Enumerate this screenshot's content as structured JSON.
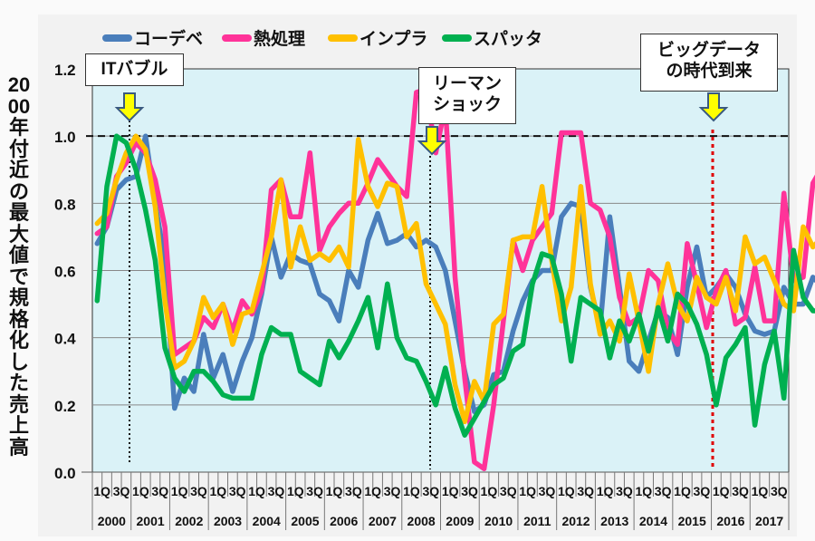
{
  "chart_data": {
    "type": "line",
    "title": "",
    "ylabel": "2000年付近の最大値で規格化した売上高",
    "xlabel": "",
    "ylim": [
      0,
      1.2
    ],
    "yticks": [
      "0.0",
      "0.2",
      "0.4",
      "0.6",
      "0.8",
      "1.0",
      "1.2"
    ],
    "grid": true,
    "legend_position": "top",
    "reference_line": 1.0,
    "years": [
      "2000",
      "2001",
      "2002",
      "2003",
      "2004",
      "2005",
      "2006",
      "2007",
      "2008",
      "2009",
      "2010",
      "2011",
      "2012",
      "2013",
      "2014",
      "2015",
      "2016",
      "2017"
    ],
    "quarter_labels": [
      "1Q",
      "3Q"
    ],
    "series": [
      {
        "name": "コーデベ",
        "color": "#4a7ebb",
        "values": [
          0.68,
          0.73,
          0.84,
          0.87,
          0.88,
          1.0,
          0.8,
          0.63,
          0.19,
          0.28,
          0.24,
          0.41,
          0.28,
          0.35,
          0.24,
          0.33,
          0.4,
          0.53,
          0.7,
          0.58,
          0.65,
          0.63,
          0.62,
          0.53,
          0.51,
          0.45,
          0.6,
          0.55,
          0.69,
          0.77,
          0.68,
          0.69,
          0.71,
          0.67,
          0.69,
          0.67,
          0.6,
          0.45,
          0.3,
          0.18,
          0.2,
          0.29,
          0.3,
          0.42,
          0.51,
          0.57,
          0.6,
          0.6,
          0.76,
          0.8,
          0.79,
          0.55,
          0.43,
          0.76,
          0.55,
          0.33,
          0.3,
          0.39,
          0.48,
          0.46,
          0.35,
          0.55,
          0.67,
          0.52,
          0.55,
          0.59,
          0.55,
          0.47,
          0.42,
          0.41,
          0.42,
          0.55,
          0.5,
          0.5,
          0.58,
          0.55,
          0.6
        ]
      },
      {
        "name": "熱処理",
        "color": "#ff3399",
        "values": [
          0.71,
          0.73,
          0.88,
          0.92,
          0.98,
          0.95,
          0.87,
          0.73,
          0.35,
          0.37,
          0.39,
          0.46,
          0.43,
          0.5,
          0.42,
          0.51,
          0.47,
          0.54,
          0.84,
          0.87,
          0.76,
          0.76,
          0.95,
          0.66,
          0.73,
          0.77,
          0.8,
          0.8,
          0.86,
          0.93,
          0.89,
          0.85,
          0.82,
          1.13,
          1.14,
          0.95,
          1.09,
          0.58,
          0.28,
          0.03,
          0.01,
          0.2,
          0.45,
          0.69,
          0.6,
          0.69,
          0.73,
          0.77,
          1.01,
          1.01,
          1.01,
          0.8,
          0.78,
          0.7,
          0.52,
          0.44,
          0.46,
          0.6,
          0.57,
          0.42,
          0.38,
          0.68,
          0.56,
          0.43,
          0.54,
          0.6,
          0.44,
          0.46,
          0.61,
          0.45,
          0.45,
          0.83,
          0.57,
          0.58,
          0.86,
          0.91,
          0.78
        ]
      },
      {
        "name": "インプラ",
        "color": "#ffc000",
        "values": [
          0.74,
          0.77,
          0.87,
          0.95,
          1.0,
          0.96,
          0.79,
          0.51,
          0.31,
          0.33,
          0.39,
          0.52,
          0.46,
          0.5,
          0.38,
          0.47,
          0.48,
          0.59,
          0.7,
          0.87,
          0.61,
          0.73,
          0.63,
          0.65,
          0.63,
          0.67,
          0.61,
          0.99,
          0.85,
          0.79,
          0.86,
          0.85,
          0.7,
          0.74,
          0.56,
          0.5,
          0.44,
          0.26,
          0.15,
          0.27,
          0.21,
          0.44,
          0.47,
          0.69,
          0.7,
          0.7,
          0.85,
          0.63,
          0.45,
          0.55,
          0.85,
          0.56,
          0.41,
          0.45,
          0.39,
          0.59,
          0.45,
          0.3,
          0.5,
          0.62,
          0.5,
          0.45,
          0.58,
          0.52,
          0.5,
          0.58,
          0.48,
          0.7,
          0.62,
          0.64,
          0.57,
          0.5,
          0.48,
          0.73,
          0.67,
          0.7,
          0.67
        ]
      },
      {
        "name": "スパッタ",
        "color": "#00b050",
        "values": [
          0.51,
          0.85,
          1.0,
          0.98,
          0.9,
          0.78,
          0.63,
          0.37,
          0.28,
          0.24,
          0.3,
          0.3,
          0.27,
          0.23,
          0.22,
          0.22,
          0.22,
          0.35,
          0.43,
          0.41,
          0.41,
          0.3,
          0.28,
          0.26,
          0.39,
          0.34,
          0.39,
          0.45,
          0.52,
          0.37,
          0.56,
          0.4,
          0.34,
          0.33,
          0.27,
          0.2,
          0.31,
          0.19,
          0.11,
          0.16,
          0.21,
          0.26,
          0.28,
          0.36,
          0.38,
          0.56,
          0.65,
          0.64,
          0.53,
          0.33,
          0.52,
          0.5,
          0.48,
          0.34,
          0.45,
          0.39,
          0.47,
          0.36,
          0.49,
          0.39,
          0.53,
          0.5,
          0.44,
          0.35,
          0.2,
          0.34,
          0.38,
          0.43,
          0.14,
          0.32,
          0.42,
          0.22,
          0.66,
          0.52,
          0.48,
          0.48,
          0.48
        ]
      }
    ],
    "annotations": [
      {
        "text": "ITバブル",
        "at": "2000 3Q"
      },
      {
        "text": "リーマン\nショック",
        "at": "2008 4Q"
      },
      {
        "text": "ビッグデータ\nの時代到来",
        "at": "2016 1Q"
      }
    ]
  },
  "legend": [
    "コーデベ",
    "熱処理",
    "インプラ",
    "スパッタ"
  ],
  "callouts": {
    "it_bubble": "ITバブル",
    "lehman_1": "リーマン",
    "lehman_2": "ショック",
    "bigdata_1": "ビッグデータ",
    "bigdata_2": "の時代到来"
  }
}
